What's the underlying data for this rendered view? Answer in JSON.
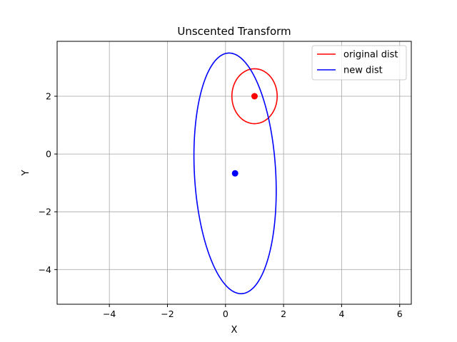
{
  "chart_data": {
    "type": "line",
    "title": "Unscented Transform",
    "xlabel": "X",
    "ylabel": "Y",
    "xlim": [
      -5.8,
      6.4
    ],
    "ylim": [
      -5.2,
      3.9
    ],
    "xticks": [
      -4,
      -2,
      0,
      2,
      4,
      6
    ],
    "yticks": [
      -4,
      -2,
      0,
      2
    ],
    "xtick_labels": [
      "−4",
      "−2",
      "0",
      "2",
      "4",
      "6"
    ],
    "ytick_labels": [
      "−4",
      "−2",
      "0",
      "2"
    ],
    "grid": true,
    "legend": {
      "placement": "top-right"
    },
    "series": [
      {
        "name": "original dist",
        "color": "#ff0000",
        "kind": "ellipse",
        "center": [
          1.0,
          2.0
        ],
        "radii": [
          0.78,
          0.95
        ],
        "angle_deg": 0
      },
      {
        "name": "new dist",
        "color": "#0000ff",
        "kind": "ellipse",
        "center": [
          0.33,
          -0.67
        ],
        "radii": [
          1.4,
          4.17
        ],
        "angle_deg": 3.2
      }
    ],
    "points": [
      {
        "x": 1.0,
        "y": 2.0,
        "color": "#ff0000"
      },
      {
        "x": 0.33,
        "y": -0.67,
        "color": "#0000ff"
      }
    ]
  }
}
